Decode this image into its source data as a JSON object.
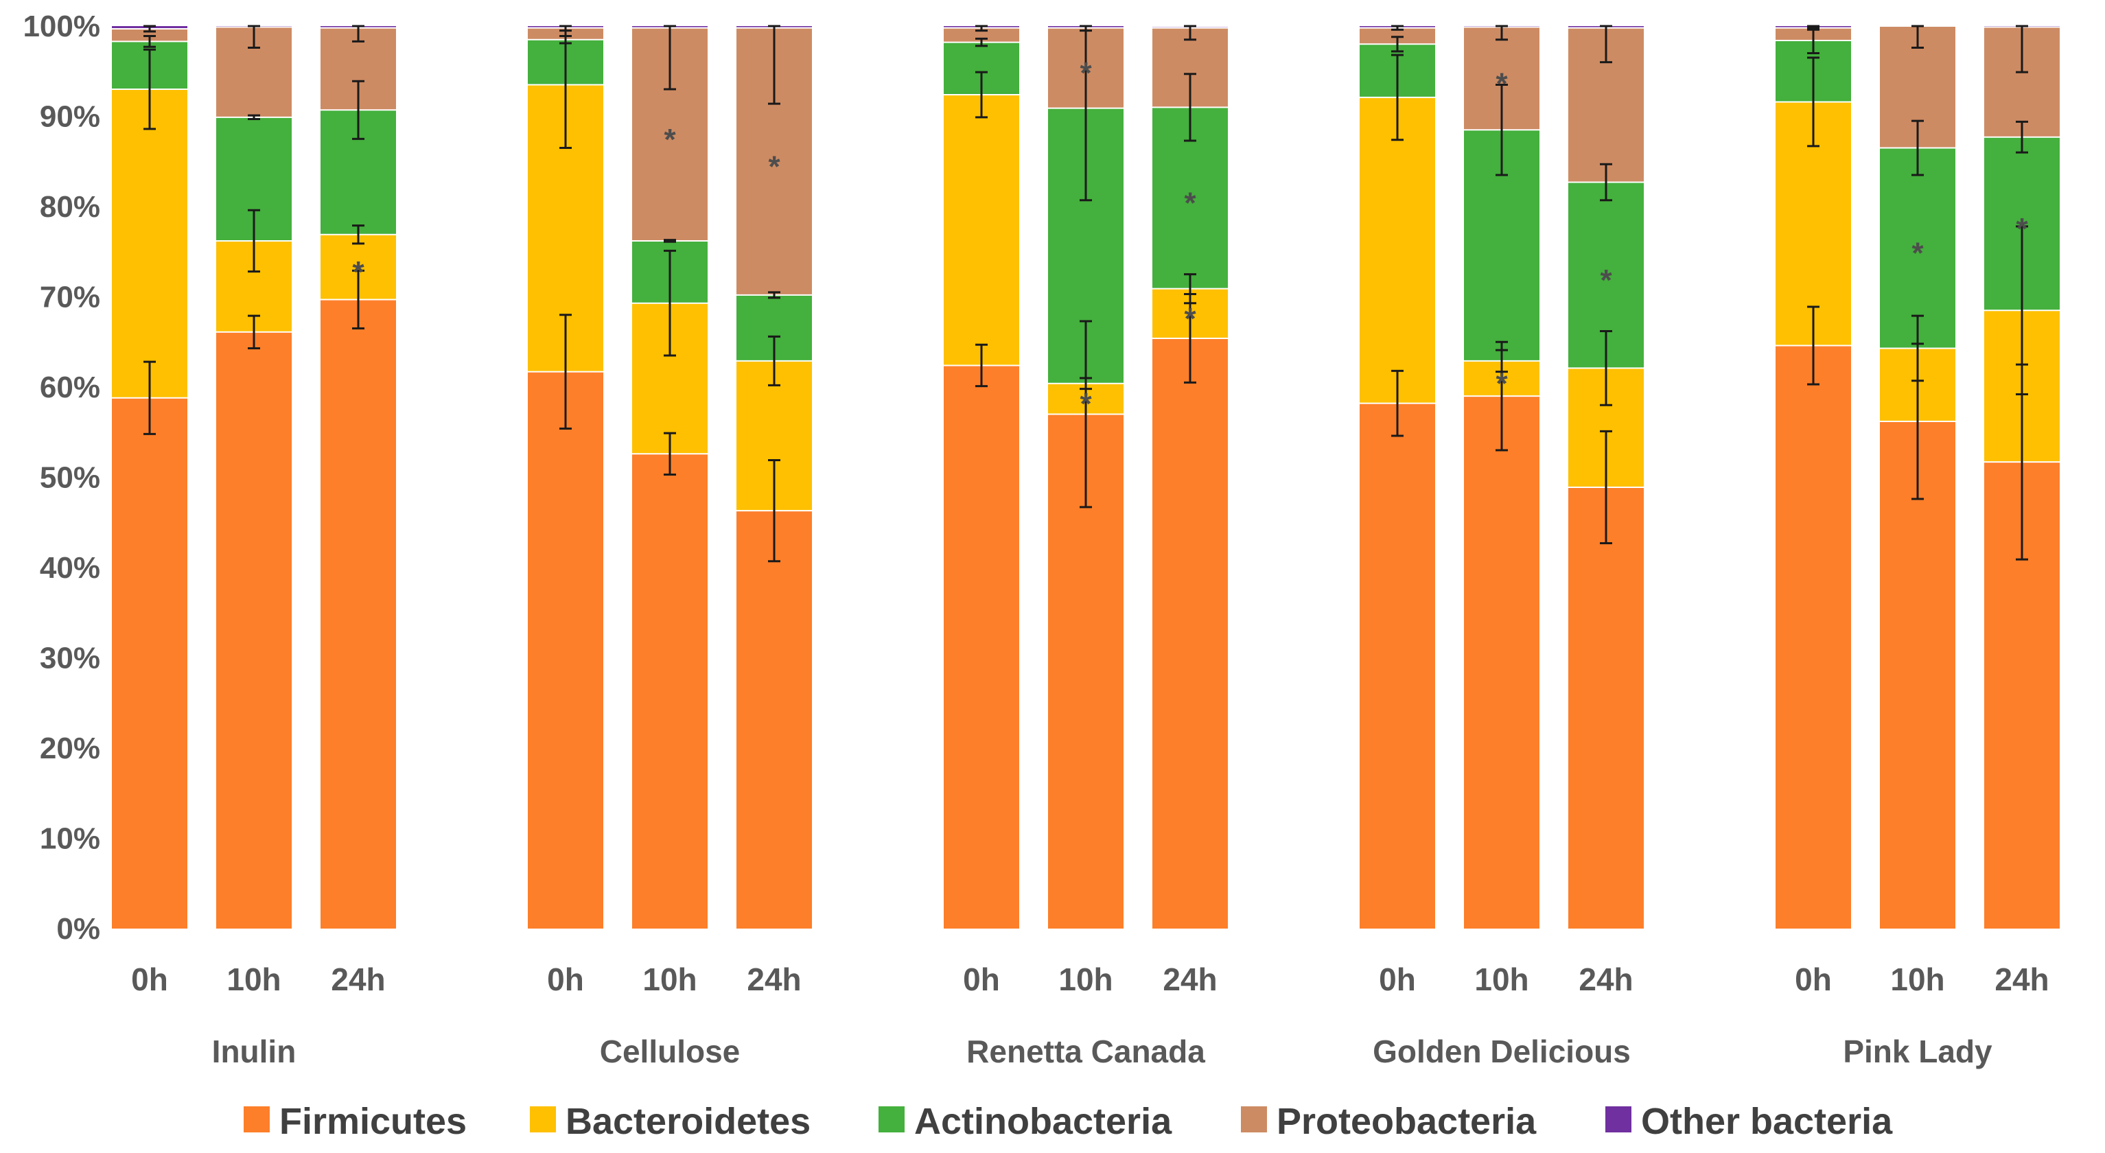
{
  "chart_data": {
    "type": "stacked-bar",
    "title": "",
    "xlabel": "",
    "ylabel": "",
    "ylim": [
      0,
      100
    ],
    "y_ticks": [
      "0%",
      "10%",
      "20%",
      "30%",
      "40%",
      "50%",
      "60%",
      "70%",
      "80%",
      "90%",
      "100%"
    ],
    "groups": [
      "Inulin",
      "Cellulose",
      "Renetta Canada",
      "Golden Delicious",
      "Pink Lady"
    ],
    "timepoints": [
      "0h",
      "10h",
      "24h"
    ],
    "series": [
      {
        "name": "Firmicutes",
        "color": "#fd7f2a",
        "values": [
          [
            58.8,
            66.1,
            69.7
          ],
          [
            61.7,
            52.6,
            46.3
          ],
          [
            62.4,
            57.0,
            65.4
          ],
          [
            58.2,
            59.0,
            48.9
          ],
          [
            64.6,
            56.2,
            51.7
          ]
        ],
        "errors": [
          [
            4.0,
            1.8,
            3.2
          ],
          [
            6.3,
            2.3,
            5.6
          ],
          [
            2.3,
            10.3,
            4.9
          ],
          [
            3.6,
            6.0,
            6.2
          ],
          [
            4.3,
            8.6,
            10.8
          ]
        ]
      },
      {
        "name": "Bacteroidetes",
        "color": "#fec000",
        "values": [
          [
            34.2,
            10.1,
            7.2
          ],
          [
            31.8,
            16.7,
            16.6
          ],
          [
            30.0,
            3.4,
            5.5
          ],
          [
            33.9,
            3.9,
            13.2
          ],
          [
            27.0,
            8.1,
            16.8
          ]
        ],
        "errors": [
          [
            4.4,
            3.4,
            1.0
          ],
          [
            7.0,
            5.8,
            2.7
          ],
          [
            2.5,
            0.6,
            1.6
          ],
          [
            4.7,
            1.2,
            4.1
          ],
          [
            4.9,
            3.6,
            9.3
          ]
        ],
        "sig": [
          [
            false,
            false,
            true
          ],
          [
            false,
            false,
            false
          ],
          [
            false,
            true,
            true
          ],
          [
            false,
            true,
            false
          ],
          [
            false,
            false,
            false
          ]
        ]
      },
      {
        "name": "Actinobacteria",
        "color": "#44b03d",
        "values": [
          [
            5.3,
            13.7,
            13.8
          ],
          [
            5.0,
            6.9,
            7.3
          ],
          [
            5.8,
            30.5,
            20.1
          ],
          [
            5.9,
            25.6,
            20.6
          ],
          [
            6.8,
            22.2,
            19.2
          ]
        ],
        "errors": [
          [
            0.6,
            0.2,
            3.2
          ],
          [
            0.4,
            0.1,
            0.3
          ],
          [
            0.4,
            10.2,
            3.7
          ],
          [
            0.8,
            5.0,
            2.0
          ],
          [
            1.4,
            3.0,
            1.7
          ]
        ],
        "sig": [
          [
            false,
            false,
            false
          ],
          [
            false,
            false,
            false
          ],
          [
            false,
            false,
            true
          ],
          [
            false,
            false,
            true
          ],
          [
            false,
            true,
            true
          ]
        ]
      },
      {
        "name": "Proteobacteria",
        "color": "#cd8b63",
        "values": [
          [
            1.4,
            10.0,
            9.1
          ],
          [
            1.3,
            23.6,
            29.6
          ],
          [
            1.6,
            8.9,
            8.8
          ],
          [
            1.8,
            11.4,
            17.1
          ],
          [
            1.4,
            13.5,
            12.2
          ]
        ],
        "errors": [
          [
            0.3,
            2.3,
            1.5
          ],
          [
            0.3,
            6.8,
            8.4
          ],
          [
            0.3,
            0.3,
            1.3
          ],
          [
            0.2,
            1.4,
            3.8
          ],
          [
            0.2,
            2.4,
            5.0
          ]
        ],
        "sig": [
          [
            false,
            false,
            false
          ],
          [
            false,
            true,
            true
          ],
          [
            false,
            true,
            false
          ],
          [
            false,
            true,
            false
          ],
          [
            false,
            false,
            false
          ]
        ]
      },
      {
        "name": "Other bacteria",
        "color": "#7030a0",
        "values": [
          [
            0.3,
            0.1,
            0.2
          ],
          [
            0.2,
            0.2,
            0.2
          ],
          [
            0.2,
            0.2,
            0.1
          ],
          [
            0.2,
            0.1,
            0.2
          ],
          [
            0.2,
            0.0,
            0.1
          ]
        ]
      }
    ],
    "significance_marker": "*",
    "legend": [
      "Firmicutes",
      "Bacteroidetes",
      "Actinobacteria",
      "Proteobacteria",
      "Other bacteria"
    ],
    "legend_position": "bottom",
    "grid": false
  }
}
